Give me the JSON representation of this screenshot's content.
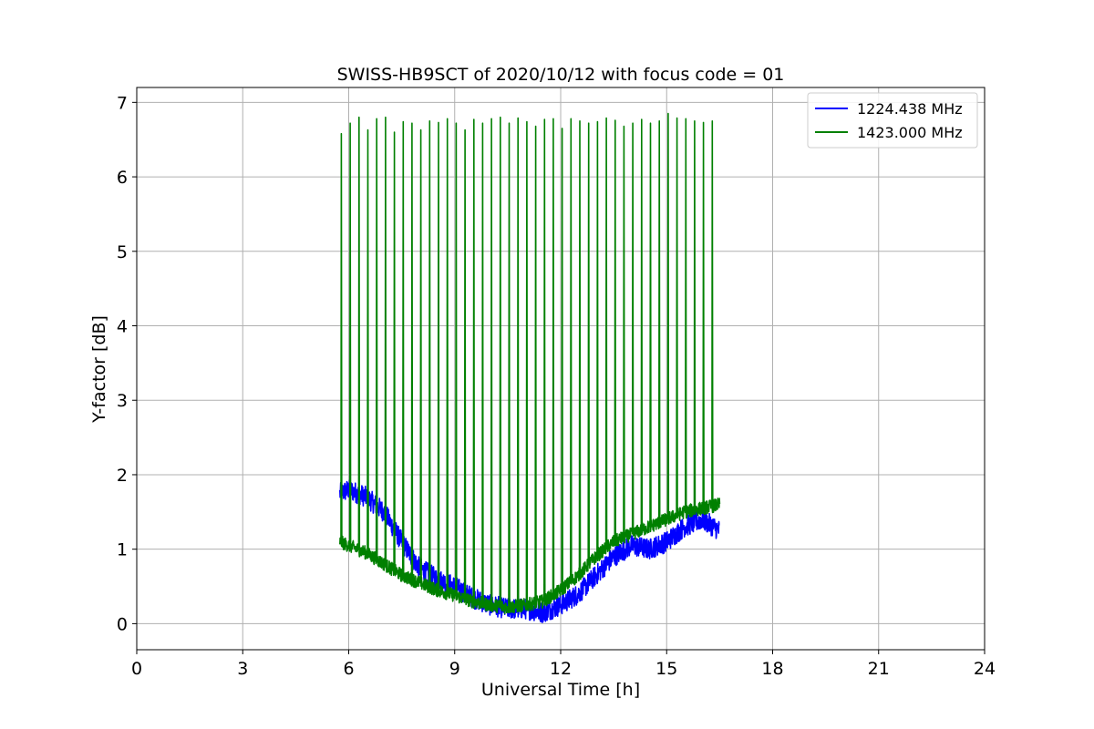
{
  "chart_data": {
    "type": "line",
    "title": "SWISS-HB9SCT of 2020/10/12 with focus code = 01",
    "xlabel": "Universal Time [h]",
    "ylabel": "Y-factor [dB]",
    "xlim": [
      0,
      24
    ],
    "ylim": [
      -0.35,
      7.2
    ],
    "xticks": [
      0,
      3,
      6,
      9,
      12,
      15,
      18,
      21,
      24
    ],
    "yticks": [
      0,
      1,
      2,
      3,
      4,
      5,
      6,
      7
    ],
    "grid": true,
    "legend_position": "top-right",
    "series": [
      {
        "name": "1224.438 MHz",
        "color": "#0000ff",
        "x": [
          5.75,
          6.0,
          6.5,
          7.0,
          7.5,
          8.0,
          8.5,
          9.0,
          9.5,
          10.0,
          10.5,
          11.0,
          11.5,
          12.0,
          12.5,
          13.0,
          13.5,
          14.0,
          14.5,
          15.0,
          15.5,
          16.0,
          16.5
        ],
        "values": [
          1.75,
          1.8,
          1.7,
          1.5,
          1.1,
          0.75,
          0.6,
          0.5,
          0.35,
          0.25,
          0.2,
          0.2,
          0.15,
          0.25,
          0.4,
          0.65,
          0.9,
          1.05,
          1.0,
          1.1,
          1.3,
          1.4,
          1.25
        ],
        "noise": 0.14
      },
      {
        "name": "1423.000 MHz",
        "color": "#008000",
        "x": [
          5.75,
          6.0,
          6.5,
          7.0,
          7.5,
          8.0,
          8.5,
          9.0,
          9.5,
          10.0,
          10.5,
          11.0,
          11.5,
          12.0,
          12.5,
          13.0,
          13.5,
          14.0,
          14.5,
          15.0,
          15.5,
          16.0,
          16.5
        ],
        "values": [
          1.1,
          1.05,
          0.95,
          0.8,
          0.65,
          0.55,
          0.45,
          0.38,
          0.3,
          0.25,
          0.22,
          0.25,
          0.3,
          0.45,
          0.65,
          0.9,
          1.1,
          1.2,
          1.3,
          1.4,
          1.5,
          1.55,
          1.6
        ],
        "noise": 0.09,
        "spikes": {
          "x": [
            5.78,
            6.03,
            6.28,
            6.53,
            6.78,
            7.03,
            7.28,
            7.53,
            7.78,
            8.03,
            8.28,
            8.53,
            8.78,
            9.03,
            9.28,
            9.53,
            9.78,
            10.03,
            10.28,
            10.53,
            10.78,
            11.03,
            11.28,
            11.53,
            11.78,
            12.03,
            12.28,
            12.53,
            12.78,
            13.03,
            13.28,
            13.53,
            13.78,
            14.03,
            14.28,
            14.53,
            14.78,
            15.03,
            15.28,
            15.53,
            15.78,
            16.03,
            16.28
          ],
          "peaks": [
            6.58,
            6.72,
            6.8,
            6.63,
            6.78,
            6.8,
            6.6,
            6.74,
            6.72,
            6.63,
            6.75,
            6.73,
            6.78,
            6.72,
            6.63,
            6.77,
            6.72,
            6.78,
            6.8,
            6.72,
            6.79,
            6.74,
            6.68,
            6.77,
            6.78,
            6.65,
            6.78,
            6.75,
            6.72,
            6.74,
            6.79,
            6.76,
            6.68,
            6.72,
            6.77,
            6.72,
            6.75,
            6.85,
            6.79,
            6.78,
            6.75,
            6.73,
            6.75
          ]
        }
      }
    ]
  }
}
